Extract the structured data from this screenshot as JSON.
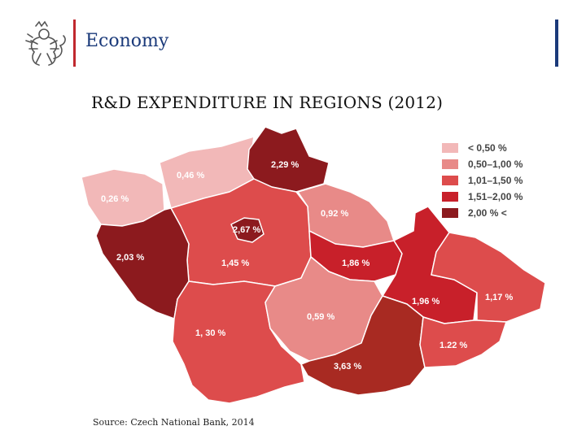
{
  "header": {
    "title": "Economy",
    "logo_icon": "czech-lion-icon"
  },
  "slide": {
    "title": "R&D EXPENDITURE IN REGIONS (2012)"
  },
  "legend": [
    {
      "label": "< 0,50 %",
      "color": "#f2b8b8"
    },
    {
      "label": "0,50–1,00 %",
      "color": "#e88a88"
    },
    {
      "label": "1,01–1,50 %",
      "color": "#dd4c4c"
    },
    {
      "label": "1,51–2,00 %",
      "color": "#c8202a"
    },
    {
      "label": "2,00 % <",
      "color": "#8c1a1e"
    }
  ],
  "regions": [
    {
      "name": "karlovarsky",
      "value": "0,26 %"
    },
    {
      "name": "ustecky",
      "value": "0,46 %"
    },
    {
      "name": "liberecky",
      "value": "2,29 %"
    },
    {
      "name": "kralovehradecky",
      "value": "0,92 %"
    },
    {
      "name": "praha",
      "value": "2,67 %"
    },
    {
      "name": "plzensky",
      "value": "2,03 %"
    },
    {
      "name": "stredocesky",
      "value": "1,45 %"
    },
    {
      "name": "pardubicky",
      "value": "1,86 %"
    },
    {
      "name": "olomoucky",
      "value": "1,96 %"
    },
    {
      "name": "moravskoslezsky",
      "value": "1,17 %"
    },
    {
      "name": "jihocesky",
      "value": "1, 30 %"
    },
    {
      "name": "vysocina",
      "value": "0,59 %"
    },
    {
      "name": "jihomoravsky",
      "value": "3,63 %"
    },
    {
      "name": "zlinsky",
      "value": "1.22 %"
    }
  ],
  "source": "Source: Czech National Bank, 2014"
}
